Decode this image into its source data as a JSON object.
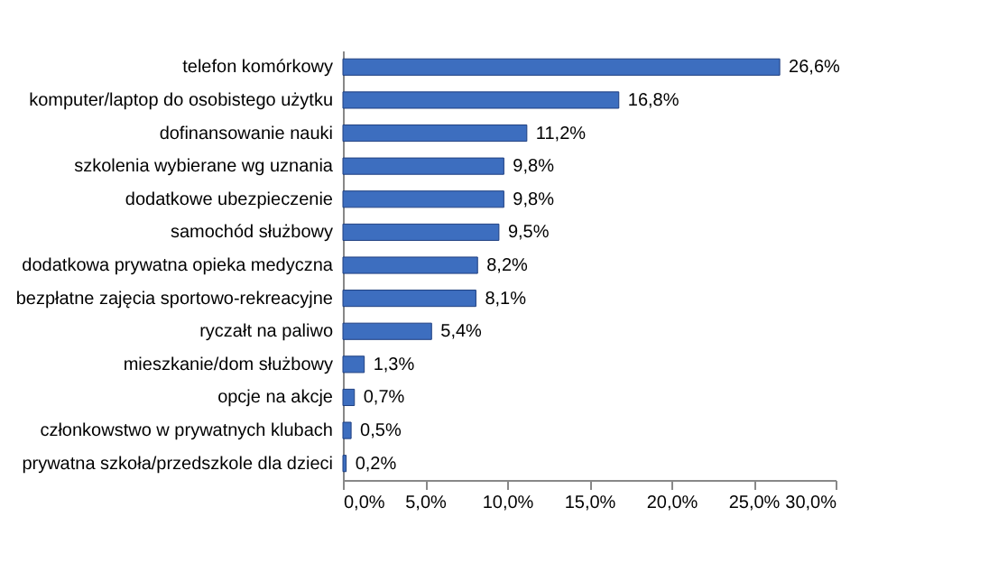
{
  "chart_data": {
    "type": "bar",
    "orientation": "horizontal",
    "categories": [
      "telefon komórkowy",
      "komputer/laptop do osobistego użytku",
      "dofinansowanie nauki",
      "szkolenia wybierane wg uznania",
      "dodatkowe ubezpieczenie",
      "samochód służbowy",
      "dodatkowa prywatna opieka medyczna",
      "bezpłatne zajęcia sportowo-rekreacyjne",
      "ryczałt na paliwo",
      "mieszkanie/dom służbowy",
      "opcje na akcje",
      "członkowstwo w prywatnych klubach",
      "prywatna szkoła/przedszkole dla dzieci"
    ],
    "values": [
      26.6,
      16.8,
      11.2,
      9.8,
      9.8,
      9.5,
      8.2,
      8.1,
      5.4,
      1.3,
      0.7,
      0.5,
      0.2
    ],
    "value_labels": [
      "26,6%",
      "16,8%",
      "11,2%",
      "9,8%",
      "9,8%",
      "9,5%",
      "8,2%",
      "8,1%",
      "5,4%",
      "1,3%",
      "0,7%",
      "0,5%",
      "0,2%"
    ],
    "color": "#3d6ebf",
    "xlim": [
      0,
      30
    ],
    "xticks": [
      {
        "value": 0,
        "label": "0,0%"
      },
      {
        "value": 5,
        "label": "5,0%"
      },
      {
        "value": 10,
        "label": "10,0%"
      },
      {
        "value": 15,
        "label": "15,0%"
      },
      {
        "value": 20,
        "label": "20,0%"
      },
      {
        "value": 25,
        "label": "25,0%"
      },
      {
        "value": 30,
        "label": "30,0%"
      }
    ],
    "grid": false
  }
}
